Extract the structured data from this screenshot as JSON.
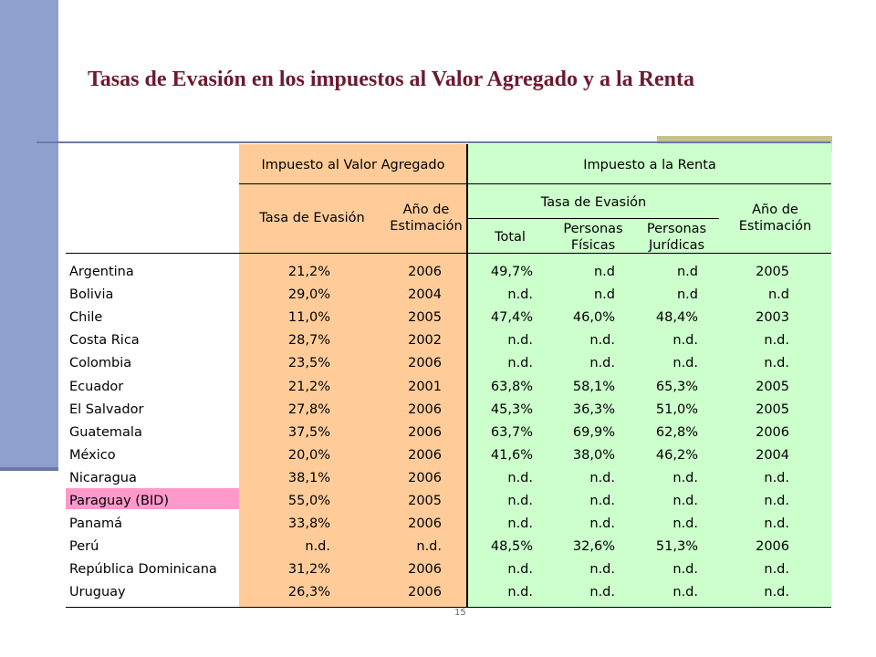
{
  "title": "Tasas de Evasión en los impuestos al Valor Agregado y a la Renta",
  "headers": {
    "iva": "Impuesto al Valor Agregado",
    "renta": "Impuesto a la Renta",
    "iva_tasa": "Tasa de Evasión",
    "iva_anio_1": "Año de",
    "iva_anio_2": "Estimación",
    "renta_tasa": "Tasa de Evasión",
    "renta_anio_1": "Año de",
    "renta_anio_2": "Estimación",
    "renta_total": "Total",
    "renta_pf_1": "Personas",
    "renta_pf_2": "Físicas",
    "renta_pj_1": "Personas",
    "renta_pj_2": "Jurídicas"
  },
  "rows": [
    {
      "country": "Argentina",
      "iva_tasa": "21,2%",
      "iva_anio": "2006",
      "total": "49,7%",
      "pf": "n.d",
      "pj": "n.d",
      "anio": "2005"
    },
    {
      "country": "Bolivia",
      "iva_tasa": "29,0%",
      "iva_anio": "2004",
      "total": "n.d.",
      "pf": "n.d",
      "pj": "n.d",
      "anio": "n.d"
    },
    {
      "country": "Chile",
      "iva_tasa": "11,0%",
      "iva_anio": "2005",
      "total": "47,4%",
      "pf": "46,0%",
      "pj": "48,4%",
      "anio": "2003"
    },
    {
      "country": "Costa Rica",
      "iva_tasa": "28,7%",
      "iva_anio": "2002",
      "total": "n.d.",
      "pf": "n.d.",
      "pj": "n.d.",
      "anio": "n.d."
    },
    {
      "country": "Colombia",
      "iva_tasa": "23,5%",
      "iva_anio": "2006",
      "total": "n.d.",
      "pf": "n.d.",
      "pj": "n.d.",
      "anio": "n.d."
    },
    {
      "country": "Ecuador",
      "iva_tasa": "21,2%",
      "iva_anio": "2001",
      "total": "63,8%",
      "pf": "58,1%",
      "pj": "65,3%",
      "anio": "2005"
    },
    {
      "country": "El Salvador",
      "iva_tasa": "27,8%",
      "iva_anio": "2006",
      "total": "45,3%",
      "pf": "36,3%",
      "pj": "51,0%",
      "anio": "2005"
    },
    {
      "country": "Guatemala",
      "iva_tasa": "37,5%",
      "iva_anio": "2006",
      "total": "63,7%",
      "pf": "69,9%",
      "pj": "62,8%",
      "anio": "2006"
    },
    {
      "country": "México",
      "iva_tasa": "20,0%",
      "iva_anio": "2006",
      "total": "41,6%",
      "pf": "38,0%",
      "pj": "46,2%",
      "anio": "2004"
    },
    {
      "country": "Nicaragua",
      "iva_tasa": "38,1%",
      "iva_anio": "2006",
      "total": "n.d.",
      "pf": "n.d.",
      "pj": "n.d.",
      "anio": "n.d."
    },
    {
      "country": "Paraguay (BID)",
      "iva_tasa": "55,0%",
      "iva_anio": "2005",
      "total": "n.d.",
      "pf": "n.d.",
      "pj": "n.d.",
      "anio": "n.d."
    },
    {
      "country": "Panamá",
      "iva_tasa": "33,8%",
      "iva_anio": "2006",
      "total": "n.d.",
      "pf": "n.d.",
      "pj": "n.d.",
      "anio": "n.d."
    },
    {
      "country": "Perú",
      "iva_tasa": "n.d.",
      "iva_anio": "n.d.",
      "total": "48,5%",
      "pf": "32,6%",
      "pj": "51,3%",
      "anio": "2006"
    },
    {
      "country": "República Dominicana",
      "iva_tasa": "31,2%",
      "iva_anio": "2006",
      "total": "n.d.",
      "pf": "n.d.",
      "pj": "n.d.",
      "anio": "n.d."
    },
    {
      "country": "Uruguay",
      "iva_tasa": "26,3%",
      "iva_anio": "2006",
      "total": "n.d.",
      "pf": "n.d.",
      "pj": "n.d.",
      "anio": "n.d."
    }
  ],
  "colors": {
    "accent_bar": "#8fa0cf",
    "title": "#6e1a2e",
    "iva_bg": "#ffcc99",
    "renta_bg": "#ccffcc",
    "highlight": "#ff99cc"
  }
}
